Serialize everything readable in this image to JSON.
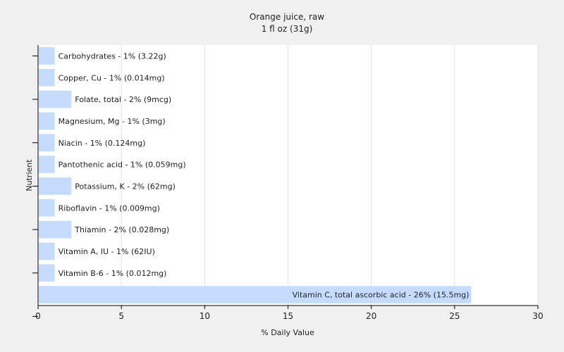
{
  "chart_data": {
    "type": "bar",
    "orientation": "horizontal",
    "title": "Orange juice, raw",
    "subtitle": "1 fl oz (31g)",
    "xlabel": "% Daily Value",
    "ylabel": "Nutrient",
    "xlim": [
      0,
      30
    ],
    "xticks": [
      "0",
      "5",
      "10",
      "15",
      "20",
      "25",
      "30"
    ],
    "grid": true,
    "legend": "none",
    "bar_color": "#c6dcff",
    "categories": [
      "Carbohydrates",
      "Copper, Cu",
      "Folate, total",
      "Magnesium, Mg",
      "Niacin",
      "Pantothenic acid",
      "Potassium, K",
      "Riboflavin",
      "Thiamin",
      "Vitamin A, IU",
      "Vitamin B-6",
      "Vitamin C, total ascorbic acid"
    ],
    "values": [
      1,
      1,
      2,
      1,
      1,
      1,
      2,
      1,
      2,
      1,
      1,
      26
    ],
    "labels": [
      "Carbohydrates - 1% (3.22g)",
      "Copper, Cu - 1% (0.014mg)",
      "Folate, total - 2% (9mcg)",
      "Magnesium, Mg - 1% (3mg)",
      "Niacin - 1% (0.124mg)",
      "Pantothenic acid - 1% (0.059mg)",
      "Potassium, K - 2% (62mg)",
      "Riboflavin - 1% (0.009mg)",
      "Thiamin - 2% (0.028mg)",
      "Vitamin A, IU - 1% (62IU)",
      "Vitamin B-6 - 1% (0.012mg)",
      "Vitamin C, total ascorbic acid - 26% (15.5mg)"
    ]
  }
}
